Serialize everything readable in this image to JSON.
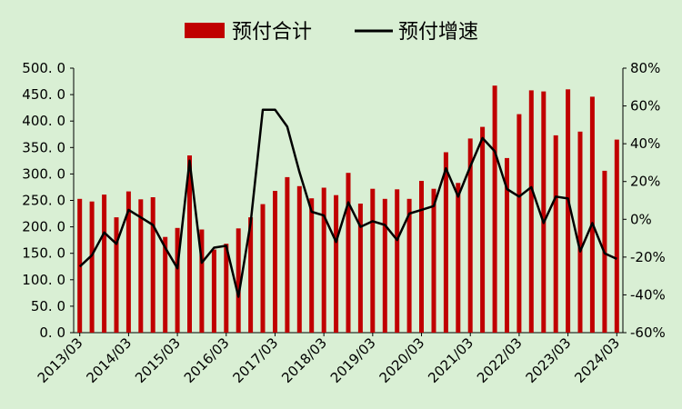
{
  "chart_data": {
    "type": "bar+line",
    "legend": {
      "bar_label": "预付合计",
      "line_label": "预付增速",
      "placement": "top-center"
    },
    "colors": {
      "background": "#d9efd4",
      "bar": "#c00000",
      "line": "#000000"
    },
    "x_tick_labels": [
      "2013/03",
      "2014/03",
      "2015/03",
      "2016/03",
      "2017/03",
      "2018/03",
      "2019/03",
      "2020/03",
      "2021/03",
      "2022/03",
      "2023/03",
      "2024/03"
    ],
    "y_left": {
      "range": [
        0,
        500
      ],
      "ticks": [
        "500. 0",
        "450. 0",
        "400. 0",
        "350. 0",
        "300. 0",
        "250. 0",
        "200. 0",
        "150. 0",
        "100. 0",
        "50. 0",
        "0. 0"
      ],
      "tick_values": [
        500,
        450,
        400,
        350,
        300,
        250,
        200,
        150,
        100,
        50,
        0
      ]
    },
    "y_right": {
      "range": [
        -60,
        80
      ],
      "ticks": [
        "80%",
        "60%",
        "40%",
        "20%",
        "0%",
        "-20%",
        "-40%",
        "-60%"
      ],
      "tick_values": [
        80,
        60,
        40,
        20,
        0,
        -20,
        -40,
        -60
      ]
    },
    "series": [
      {
        "name": "预付合计",
        "kind": "bar",
        "axis": "left",
        "values": [
          253,
          248,
          261,
          218,
          267,
          252,
          256,
          181,
          198,
          335,
          195,
          157,
          168,
          197,
          218,
          243,
          268,
          294,
          277,
          254,
          274,
          260,
          302,
          244,
          272,
          253,
          271,
          253,
          287,
          272,
          341,
          283,
          367,
          389,
          467,
          330,
          413,
          458,
          456,
          373,
          460,
          380,
          446,
          306,
          365
        ]
      },
      {
        "name": "预付增速",
        "kind": "line",
        "axis": "right",
        "values": [
          -25,
          -19,
          -7,
          -13,
          5,
          1,
          -3,
          -15,
          -26,
          31,
          -23,
          -15,
          -14,
          -41,
          -2,
          58,
          58,
          49,
          25,
          4,
          2,
          -12,
          9,
          -4,
          -1,
          -3,
          -11,
          3,
          5,
          7,
          27,
          12,
          28,
          43,
          36,
          16,
          12,
          17,
          -2,
          12,
          11,
          -17,
          -2,
          -18,
          -21
        ]
      }
    ]
  }
}
